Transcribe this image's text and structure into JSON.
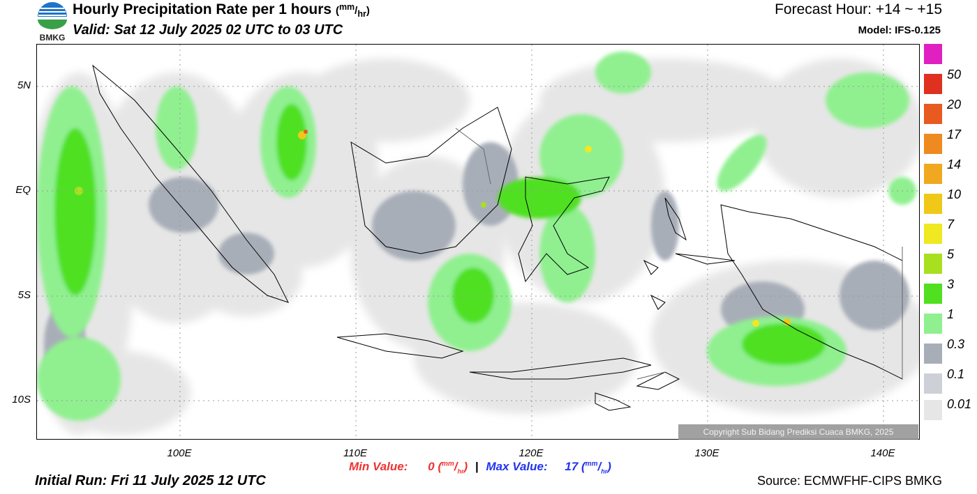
{
  "header": {
    "logo_text": "BMKG",
    "title": "Hourly Precipitation Rate per 1 hours",
    "title_unit_num": "mm",
    "title_unit_den": "hr",
    "valid": "Valid: Sat 12 July 2025 02 UTC to 03 UTC",
    "forecast_hour": "Forecast Hour: +14 ~ +15",
    "model": "Model: IFS-0.125"
  },
  "map": {
    "lat_labels": [
      "5N",
      "EQ",
      "5S",
      "10S"
    ],
    "lon_labels": [
      "100E",
      "110E",
      "120E",
      "130E",
      "140E"
    ],
    "copyright": "Copyright Sub Bidang Prediksi Cuaca BMKG, 2025"
  },
  "legend": {
    "labels": [
      "50",
      "20",
      "17",
      "14",
      "10",
      "7",
      "5",
      "3",
      "1",
      "0.3",
      "0.1",
      "0.01"
    ],
    "colors": [
      "#e020c0",
      "#e03020",
      "#e85a20",
      "#ee8a20",
      "#f0a820",
      "#f0c818",
      "#f0e820",
      "#a8e020",
      "#50e020",
      "#90f090",
      "#a8aeb8",
      "#cdd0d6",
      "#e6e6e6"
    ]
  },
  "footer": {
    "min_label": "Min Value:",
    "min_value": "0",
    "max_label": "Max Value:",
    "max_value": "17",
    "unit_num": "mm",
    "unit_den": "hr",
    "separator": "|",
    "initial_run": "Initial Run: Fri 11 July 2025 12 UTC",
    "source": "Source: ECMWFHF-CIPS BMKG"
  }
}
